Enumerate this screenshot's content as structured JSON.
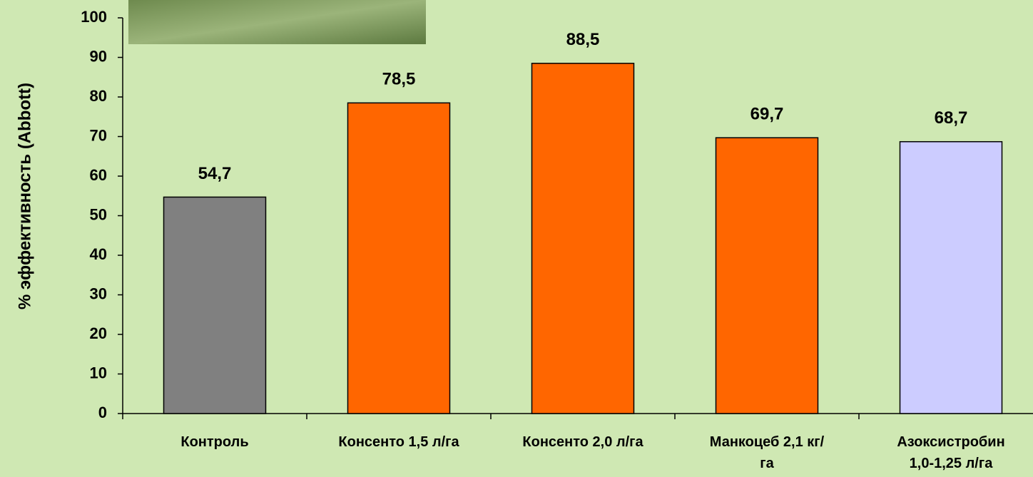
{
  "chart_data": {
    "type": "bar",
    "y_label": "% эффективность (Abbott)",
    "categories": [
      "Контроль",
      "Консенто 1,5 л/га",
      "Консенто 2,0 л/га",
      "Манкоцеб  2,1 кг/га",
      "Азоксистробин 1,0-1,25 л/га"
    ],
    "values": [
      54.7,
      78.5,
      88.5,
      69.7,
      68.7
    ],
    "value_labels": [
      "54,7",
      "78,5",
      "88,5",
      "69,7",
      "68,7"
    ],
    "colors": [
      "#808080",
      "#ff6600",
      "#ff6600",
      "#ff6600",
      "#ccccff"
    ],
    "ylim": [
      0,
      100
    ],
    "yticks": [
      0,
      10,
      20,
      30,
      40,
      50,
      60,
      70,
      80,
      90,
      100
    ]
  }
}
